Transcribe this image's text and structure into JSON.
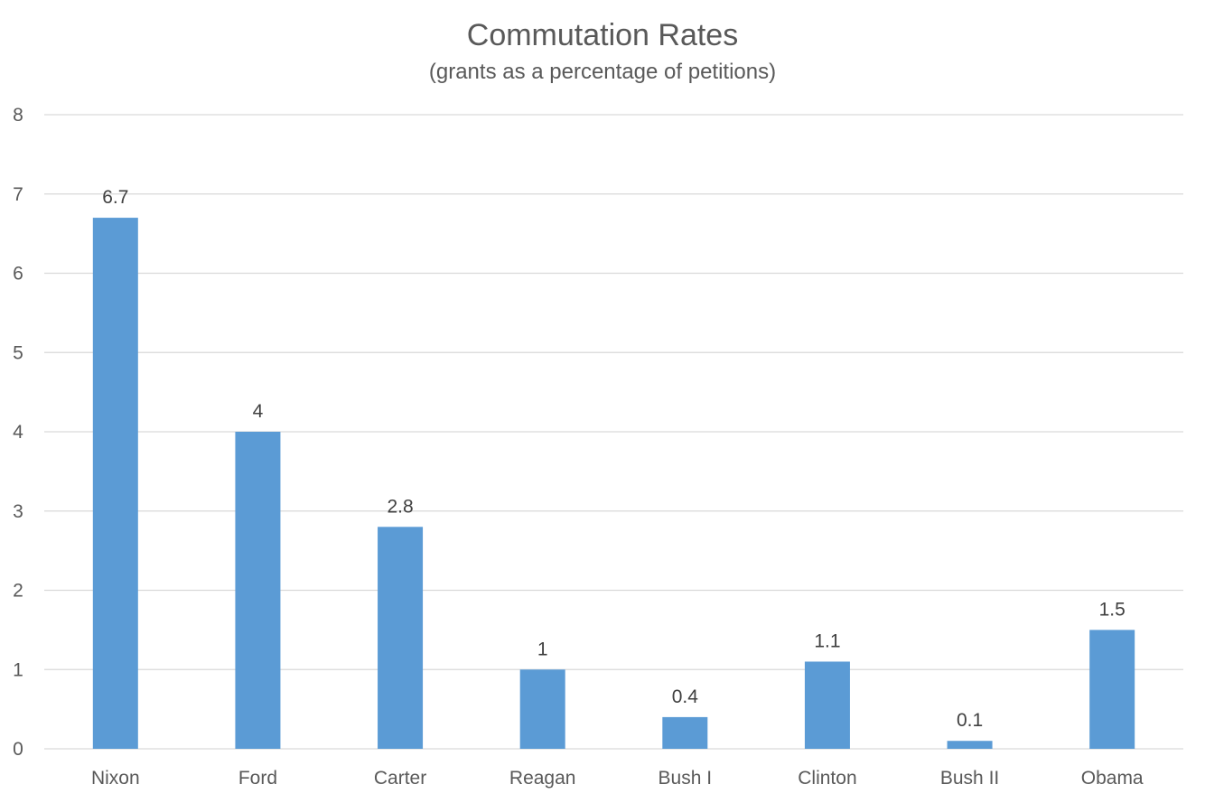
{
  "chart_data": {
    "type": "bar",
    "title": "Commutation Rates",
    "subtitle": "(grants as a percentage of petitions)",
    "categories": [
      "Nixon",
      "Ford",
      "Carter",
      "Reagan",
      "Bush I",
      "Clinton",
      "Bush II",
      "Obama"
    ],
    "values": [
      6.7,
      4,
      2.8,
      1,
      0.4,
      1.1,
      0.1,
      1.5
    ],
    "data_labels": [
      "6.7",
      "4",
      "2.8",
      "1",
      "0.4",
      "1.1",
      "0.1",
      "1.5"
    ],
    "ylim": [
      0,
      8
    ],
    "yticks": [
      "0",
      "1",
      "2",
      "3",
      "4",
      "5",
      "6",
      "7",
      "8"
    ],
    "grid": true,
    "legend": "none",
    "bar_color": "#5b9bd5",
    "grid_color": "#d9d9d9"
  }
}
